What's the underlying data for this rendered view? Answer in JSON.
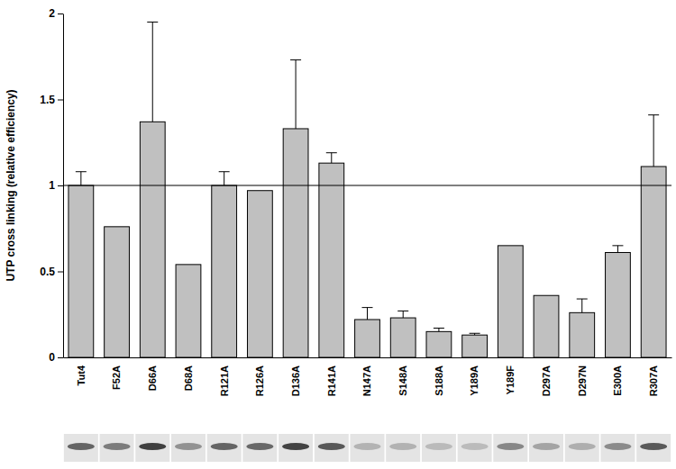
{
  "chart_data": {
    "type": "bar",
    "y_label": "UTP cross linking (relative efficiency)",
    "categories": [
      "Tut4",
      "F52A",
      "D66A",
      "D68A",
      "R121A",
      "R126A",
      "D136A",
      "R141A",
      "N147A",
      "S148A",
      "S188A",
      "Y189A",
      "Y189F",
      "D297A",
      "D297N",
      "E300A",
      "R307A"
    ],
    "values": [
      1.0,
      0.76,
      1.37,
      0.54,
      1.0,
      0.97,
      1.33,
      1.13,
      0.22,
      0.23,
      0.15,
      0.13,
      0.65,
      0.36,
      0.26,
      0.61,
      1.11
    ],
    "errors": [
      0.08,
      null,
      0.58,
      null,
      0.08,
      null,
      0.4,
      0.06,
      0.07,
      0.04,
      0.02,
      0.01,
      null,
      null,
      0.08,
      0.04,
      0.3
    ],
    "color": "#c0c0c0",
    "reference_line": 1,
    "ylim": [
      0,
      2
    ],
    "yticks": [
      0,
      0.5,
      1,
      1.5,
      2
    ],
    "grid": false
  }
}
